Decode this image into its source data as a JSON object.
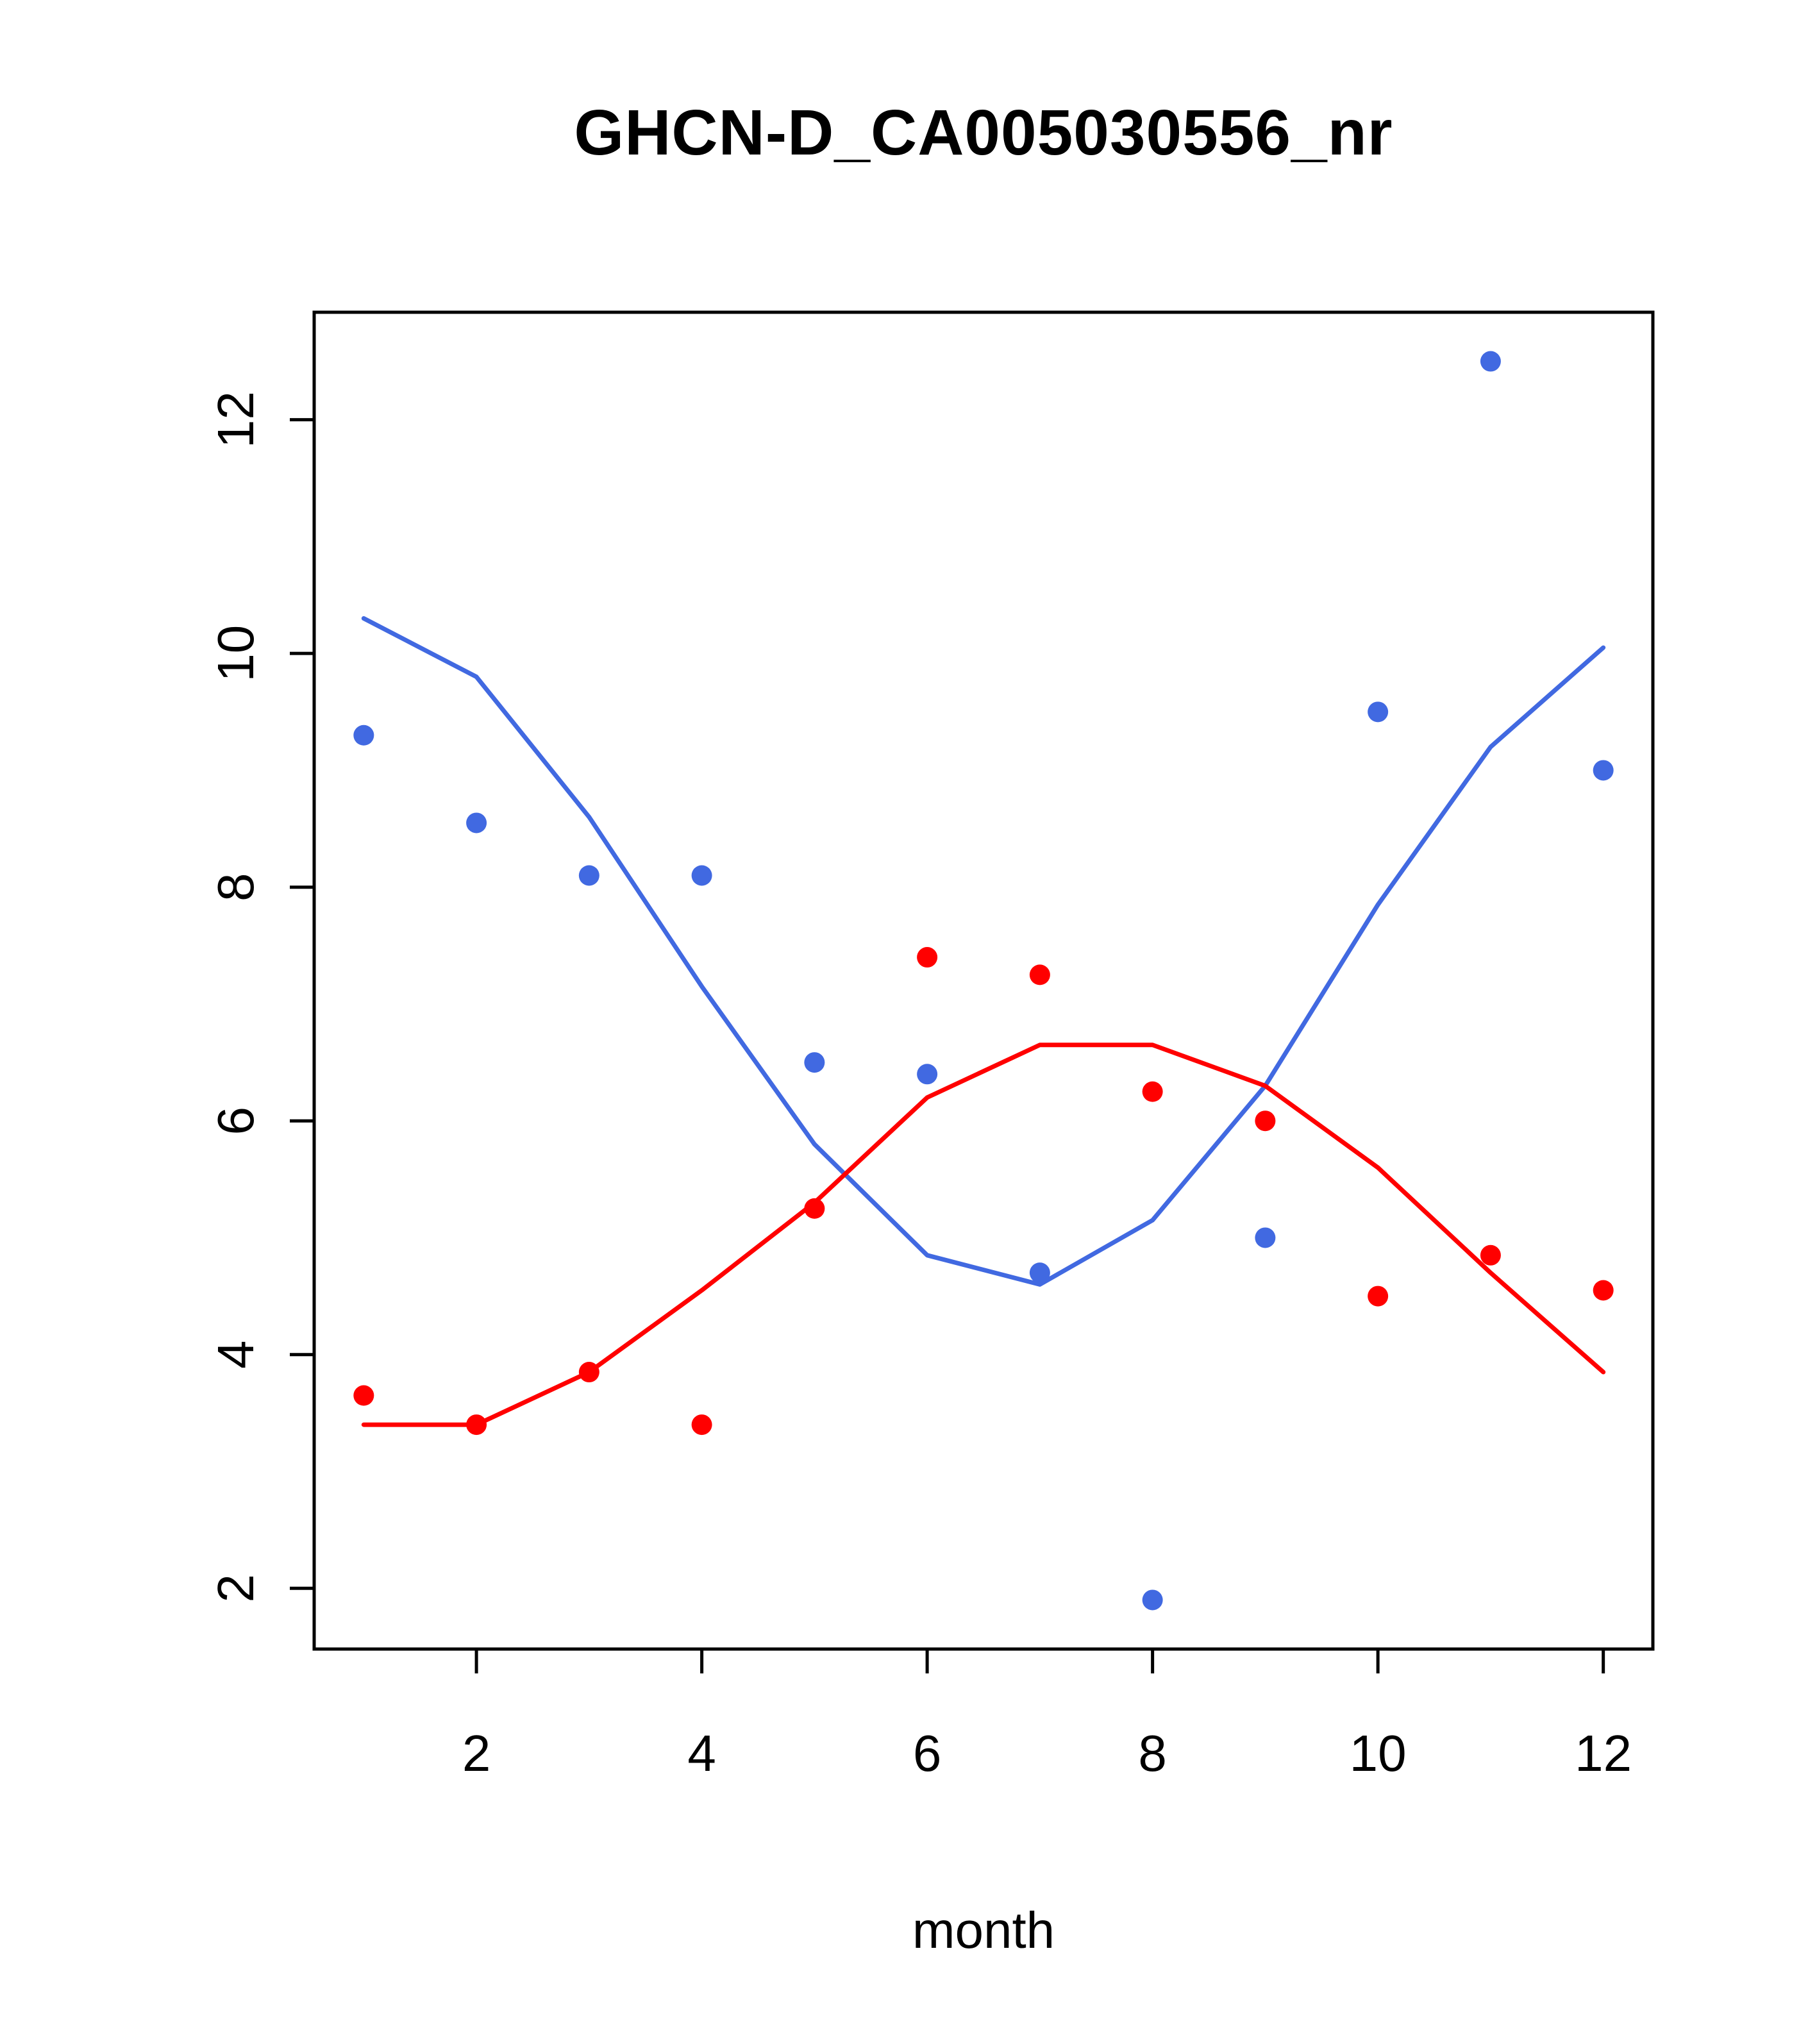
{
  "chart_data": {
    "type": "scatter",
    "title": "GHCN-D_CA005030556_nr",
    "xlabel": "month",
    "ylabel": "",
    "grid": false,
    "legend": "none",
    "x": [
      1,
      2,
      3,
      4,
      5,
      6,
      7,
      8,
      9,
      10,
      11,
      12
    ],
    "xticks": [
      2,
      4,
      6,
      8,
      10,
      12
    ],
    "yticks": [
      2,
      4,
      6,
      8,
      10,
      12
    ],
    "xlim": [
      0.56,
      12.44
    ],
    "ylim": [
      1.48,
      12.92
    ],
    "colors": {
      "blue": "#4169E1",
      "red": "#FF0000"
    },
    "series": [
      {
        "name": "blue-smooth-line",
        "style": "line",
        "color": "#4169E1",
        "values": [
          10.3,
          9.8,
          8.6,
          7.15,
          5.8,
          4.85,
          4.6,
          5.15,
          6.3,
          7.85,
          9.2,
          10.05
        ]
      },
      {
        "name": "red-smooth-line",
        "style": "line",
        "color": "#FF0000",
        "values": [
          3.4,
          3.4,
          3.85,
          4.55,
          5.3,
          6.2,
          6.65,
          6.65,
          6.3,
          5.6,
          4.7,
          3.85
        ]
      },
      {
        "name": "blue-points",
        "style": "points",
        "color": "#4169E1",
        "values": [
          9.3,
          8.55,
          8.1,
          8.1,
          6.5,
          6.4,
          4.7,
          1.9,
          5.0,
          9.5,
          12.5,
          9.0
        ]
      },
      {
        "name": "red-points",
        "style": "points",
        "color": "#FF0000",
        "values": [
          3.65,
          3.4,
          3.85,
          3.4,
          5.25,
          7.4,
          7.25,
          6.25,
          6.0,
          4.5,
          4.85,
          4.55
        ]
      }
    ]
  }
}
